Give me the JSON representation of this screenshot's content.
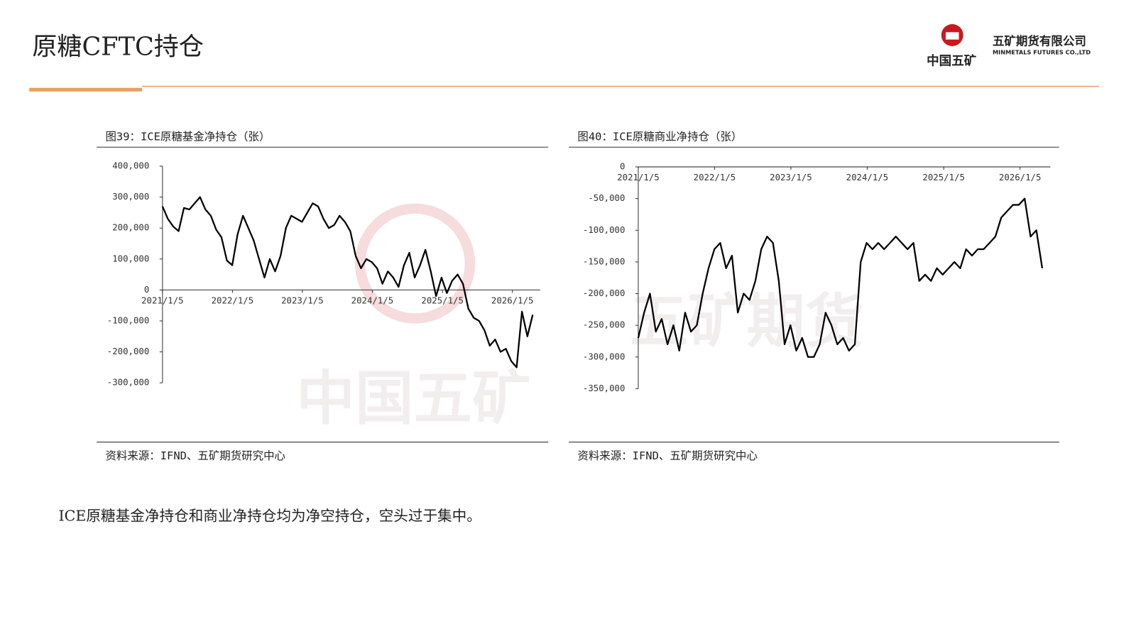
{
  "header": {
    "title": "原糖CFTC持仓",
    "logo_text": "中国五矿",
    "company_cn": "五矿期货有限公司",
    "company_en": "MINMETALS FUTURES CO.,LTD"
  },
  "watermarks": [
    "中国五矿",
    "五矿期货"
  ],
  "body_text": "ICE原糖基金净持仓和商业净持仓均为净空持仓，空头过于集中。",
  "chart_data": [
    {
      "type": "line",
      "title": "图39：ICE原糖基金净持仓（张）",
      "source": "资料来源：IFND、五矿期货研究中心",
      "color": "#000000",
      "x": [
        "2021/1/5",
        "2021/2/2",
        "2021/3/2",
        "2021/3/30",
        "2021/4/27",
        "2021/5/25",
        "2021/6/22",
        "2021/7/20",
        "2021/8/17",
        "2021/9/14",
        "2021/10/12",
        "2021/11/9",
        "2021/12/7",
        "2022/1/4",
        "2022/2/1",
        "2022/3/1",
        "2022/3/29",
        "2022/4/26",
        "2022/5/24",
        "2022/6/21",
        "2022/7/19",
        "2022/8/16",
        "2022/9/13",
        "2022/10/11",
        "2022/11/8",
        "2022/12/6",
        "2023/1/3",
        "2023/1/31",
        "2023/2/28",
        "2023/3/28",
        "2023/4/25",
        "2023/5/23",
        "2023/6/20",
        "2023/7/18",
        "2023/8/15",
        "2023/9/12",
        "2023/10/10",
        "2023/11/7",
        "2023/12/5",
        "2024/1/2",
        "2024/1/30",
        "2024/2/27",
        "2024/3/26",
        "2024/4/23",
        "2024/5/21",
        "2024/6/18",
        "2024/7/16",
        "2024/8/13",
        "2024/9/10",
        "2024/10/8",
        "2024/11/5",
        "2024/12/3",
        "2024/12/31",
        "2025/1/28",
        "2025/2/25",
        "2025/3/25",
        "2025/4/22",
        "2025/5/20",
        "2025/6/17",
        "2025/7/15",
        "2025/8/12",
        "2025/9/9",
        "2025/10/7",
        "2025/11/4",
        "2025/12/2",
        "2025/12/30",
        "2026/1/27",
        "2026/2/24",
        "2026/3/24",
        "2026/4/21"
      ],
      "values": [
        270000,
        230000,
        205000,
        190000,
        265000,
        260000,
        280000,
        300000,
        260000,
        240000,
        195000,
        170000,
        95000,
        80000,
        180000,
        240000,
        200000,
        160000,
        100000,
        40000,
        100000,
        60000,
        110000,
        200000,
        240000,
        230000,
        220000,
        250000,
        280000,
        270000,
        230000,
        200000,
        210000,
        240000,
        220000,
        190000,
        110000,
        70000,
        100000,
        90000,
        70000,
        20000,
        60000,
        40000,
        10000,
        80000,
        120000,
        40000,
        80000,
        130000,
        60000,
        -20000,
        40000,
        -10000,
        30000,
        50000,
        20000,
        -60000,
        -90000,
        -100000,
        -130000,
        -180000,
        -160000,
        -200000,
        -190000,
        -230000,
        -250000,
        -70000,
        -150000,
        -80000
      ],
      "xlim": [
        "2021/1/5",
        "2026/5/30"
      ],
      "xticks": [
        "2021/1/5",
        "2022/1/5",
        "2023/1/5",
        "2024/1/5",
        "2025/1/5",
        "2026/1/5"
      ],
      "ylim": [
        -300000,
        400000
      ],
      "yticks": [
        {
          "value": -300000,
          "label": "-300,000"
        },
        {
          "value": -200000,
          "label": "-200,000"
        },
        {
          "value": -100000,
          "label": "-100,000"
        },
        0,
        {
          "value": 100000,
          "label": "100,000"
        },
        {
          "value": 200000,
          "label": "200,000"
        },
        {
          "value": 300000,
          "label": "300,000"
        },
        {
          "value": 400000,
          "label": "400,000"
        }
      ]
    },
    {
      "type": "line",
      "title": "图40：ICE原糖商业净持仓（张）",
      "source": "资料来源：IFND、五矿期货研究中心",
      "color": "#000000",
      "x": [
        "2021/1/5",
        "2021/2/2",
        "2021/3/2",
        "2021/3/30",
        "2021/4/27",
        "2021/5/25",
        "2021/6/22",
        "2021/7/20",
        "2021/8/17",
        "2021/9/14",
        "2021/10/12",
        "2021/11/9",
        "2021/12/7",
        "2022/1/4",
        "2022/2/1",
        "2022/3/1",
        "2022/3/29",
        "2022/4/26",
        "2022/5/24",
        "2022/6/21",
        "2022/7/19",
        "2022/8/16",
        "2022/9/13",
        "2022/10/11",
        "2022/11/8",
        "2022/12/6",
        "2023/1/3",
        "2023/1/31",
        "2023/2/28",
        "2023/3/28",
        "2023/4/25",
        "2023/5/23",
        "2023/6/20",
        "2023/7/18",
        "2023/8/15",
        "2023/9/12",
        "2023/10/10",
        "2023/11/7",
        "2023/12/5",
        "2024/1/2",
        "2024/1/30",
        "2024/2/27",
        "2024/3/26",
        "2024/4/23",
        "2024/5/21",
        "2024/6/18",
        "2024/7/16",
        "2024/8/13",
        "2024/9/10",
        "2024/10/8",
        "2024/11/5",
        "2024/12/3",
        "2024/12/31",
        "2025/1/28",
        "2025/2/25",
        "2025/3/25",
        "2025/4/22",
        "2025/5/20",
        "2025/6/17",
        "2025/7/15",
        "2025/8/12",
        "2025/9/9",
        "2025/10/7",
        "2025/11/4",
        "2025/12/2",
        "2025/12/30",
        "2026/1/27",
        "2026/2/24",
        "2026/3/24",
        "2026/4/21"
      ],
      "values": [
        -270000,
        -230000,
        -200000,
        -260000,
        -240000,
        -280000,
        -250000,
        -290000,
        -230000,
        -260000,
        -250000,
        -200000,
        -160000,
        -130000,
        -120000,
        -160000,
        -140000,
        -230000,
        -200000,
        -210000,
        -180000,
        -130000,
        -110000,
        -120000,
        -180000,
        -280000,
        -250000,
        -290000,
        -270000,
        -300000,
        -300000,
        -280000,
        -230000,
        -250000,
        -280000,
        -270000,
        -290000,
        -280000,
        -150000,
        -120000,
        -130000,
        -120000,
        -130000,
        -120000,
        -110000,
        -120000,
        -130000,
        -120000,
        -180000,
        -170000,
        -180000,
        -160000,
        -170000,
        -160000,
        -150000,
        -160000,
        -130000,
        -140000,
        -130000,
        -130000,
        -120000,
        -110000,
        -80000,
        -70000,
        -60000,
        -60000,
        -50000,
        -110000,
        -100000,
        -160000
      ],
      "xlim": [
        "2021/1/5",
        "2026/5/30"
      ],
      "xticks": [
        "2021/1/5",
        "2022/1/5",
        "2023/1/5",
        "2024/1/5",
        "2025/1/5",
        "2026/1/5"
      ],
      "ylim": [
        -350000,
        0
      ],
      "yticks": [
        {
          "value": -350000,
          "label": "-350,000"
        },
        {
          "value": -300000,
          "label": "-300,000"
        },
        {
          "value": -250000,
          "label": "-250,000"
        },
        {
          "value": -200000,
          "label": "-200,000"
        },
        {
          "value": -150000,
          "label": "-150,000"
        },
        {
          "value": -100000,
          "label": "-100,000"
        },
        {
          "value": -50000,
          "label": "-50,000"
        },
        0
      ]
    }
  ]
}
